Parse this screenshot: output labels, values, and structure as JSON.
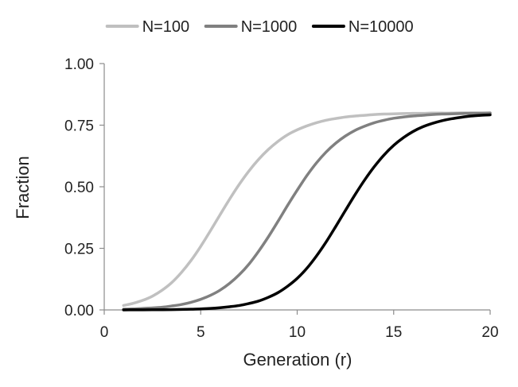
{
  "chart_data": {
    "type": "line",
    "title": "",
    "xlabel": "Generation (r)",
    "ylabel": "Fraction",
    "xlim": [
      0,
      20
    ],
    "ylim": [
      0,
      1
    ],
    "xticks": [
      0,
      5,
      10,
      15,
      20
    ],
    "yticks": [
      0,
      0.25,
      0.5,
      0.75,
      1
    ],
    "xtick_labels": [
      "0",
      "5",
      "10",
      "15",
      "20"
    ],
    "ytick_labels": [
      "0.00",
      "0.25",
      "0.50",
      "0.75",
      "1.00"
    ],
    "grid": false,
    "legend_position": "top",
    "x": [
      1,
      1.5,
      2,
      2.5,
      3,
      3.5,
      4,
      4.5,
      5,
      5.5,
      6,
      6.5,
      7,
      7.5,
      8,
      8.5,
      9,
      9.5,
      10,
      10.5,
      11,
      11.5,
      12,
      12.5,
      13,
      13.5,
      14,
      14.5,
      15,
      15.5,
      16,
      16.5,
      17,
      17.5,
      18,
      18.5,
      19,
      19.5,
      20
    ],
    "series": [
      {
        "name": "N=100",
        "color": "#c0c0c0",
        "values": [
          0.018,
          0.027,
          0.039,
          0.056,
          0.08,
          0.111,
          0.152,
          0.201,
          0.258,
          0.321,
          0.386,
          0.45,
          0.51,
          0.564,
          0.611,
          0.651,
          0.684,
          0.711,
          0.731,
          0.747,
          0.76,
          0.77,
          0.777,
          0.783,
          0.787,
          0.79,
          0.793,
          0.795,
          0.796,
          0.797,
          0.798,
          0.798,
          0.799,
          0.799,
          0.799,
          0.8,
          0.8,
          0.8,
          0.8
        ]
      },
      {
        "name": "N=1000",
        "color": "#808080",
        "values": [
          0.003,
          0.004,
          0.006,
          0.008,
          0.011,
          0.016,
          0.022,
          0.031,
          0.043,
          0.059,
          0.08,
          0.108,
          0.143,
          0.186,
          0.238,
          0.296,
          0.359,
          0.424,
          0.486,
          0.545,
          0.597,
          0.641,
          0.677,
          0.706,
          0.729,
          0.746,
          0.76,
          0.77,
          0.778,
          0.783,
          0.787,
          0.79,
          0.793,
          0.795,
          0.796,
          0.797,
          0.798,
          0.798,
          0.799
        ]
      },
      {
        "name": "N=10000",
        "color": "#000000",
        "values": [
          0.0002,
          0.0003,
          0.0004,
          0.0006,
          0.0009,
          0.0013,
          0.0019,
          0.0028,
          0.004,
          0.006,
          0.009,
          0.013,
          0.018,
          0.026,
          0.036,
          0.051,
          0.07,
          0.096,
          0.128,
          0.169,
          0.219,
          0.276,
          0.339,
          0.404,
          0.468,
          0.528,
          0.582,
          0.629,
          0.668,
          0.699,
          0.724,
          0.743,
          0.757,
          0.768,
          0.776,
          0.782,
          0.787,
          0.79,
          0.792
        ]
      }
    ]
  }
}
